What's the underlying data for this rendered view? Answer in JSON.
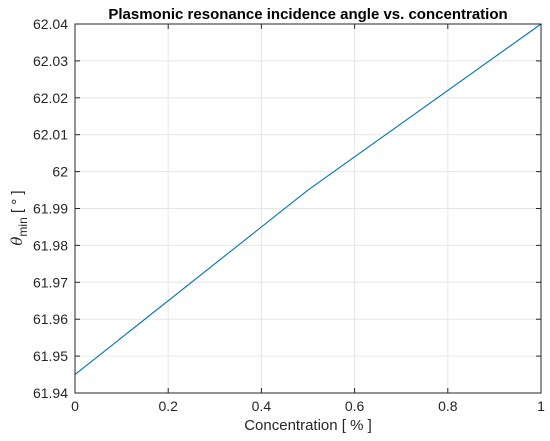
{
  "chart_data": {
    "type": "line",
    "title": "Plasmonic resonance incidence angle vs. concentration",
    "xlabel": "Concentration [ % ]",
    "ylabel": {
      "symbol": "θ",
      "subscript": "min",
      "unit": " [ ° ]"
    },
    "xlim": [
      0,
      1
    ],
    "ylim": [
      61.94,
      62.04
    ],
    "xticks": [
      0,
      0.2,
      0.4,
      0.6,
      0.8,
      1
    ],
    "xtick_labels": [
      "0",
      "0.2",
      "0.4",
      "0.6",
      "0.8",
      "1"
    ],
    "yticks": [
      61.94,
      61.95,
      61.96,
      61.97,
      61.98,
      61.99,
      62.0,
      62.01,
      62.02,
      62.03,
      62.04
    ],
    "ytick_labels": [
      "61.94",
      "61.95",
      "61.96",
      "61.97",
      "61.98",
      "61.99",
      "62",
      "62.01",
      "62.02",
      "62.03",
      "62.04"
    ],
    "grid": true,
    "series": [
      {
        "color": "#0072BD",
        "x": [
          0,
          0.5,
          1
        ],
        "y": [
          61.945,
          61.995,
          62.04
        ]
      }
    ]
  }
}
